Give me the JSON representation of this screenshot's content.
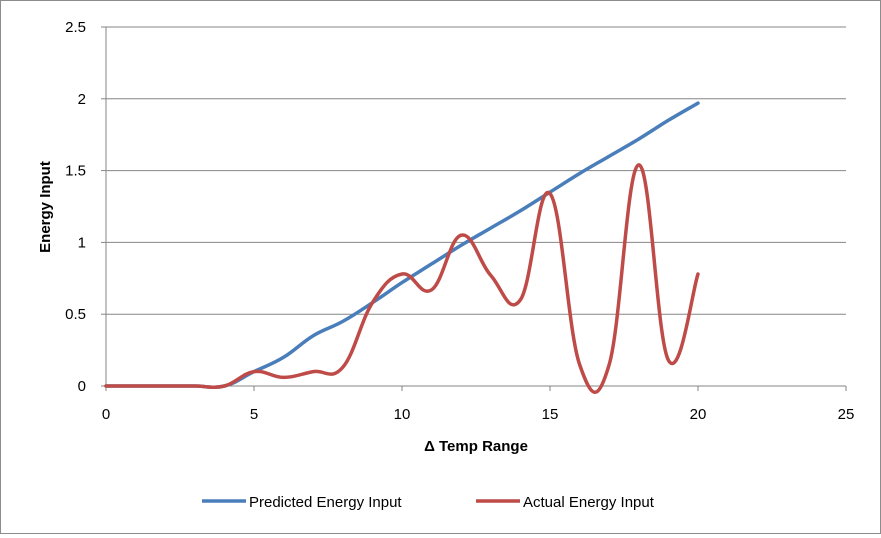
{
  "chart_data": {
    "type": "line",
    "title": "",
    "xlabel": "Δ Temp Range",
    "ylabel": "Energy Input",
    "xlim": [
      0,
      25
    ],
    "ylim": [
      0,
      2.5
    ],
    "x_ticks": [
      "0",
      "5",
      "10",
      "15",
      "20",
      "25"
    ],
    "y_ticks": [
      "0",
      "0.5",
      "1",
      "1.5",
      "2",
      "2.5"
    ],
    "grid": "horizontal",
    "legend_position": "bottom",
    "series": [
      {
        "name": "Predicted Energy Input",
        "color": "#4a7ebb",
        "x": [
          0,
          1,
          2,
          3,
          4,
          5,
          6,
          7,
          8,
          9,
          10,
          11,
          12,
          13,
          14,
          15,
          16,
          17,
          18,
          19,
          20
        ],
        "y": [
          0,
          0,
          0,
          0,
          0,
          0.1,
          0.2,
          0.35,
          0.45,
          0.58,
          0.72,
          0.85,
          0.98,
          1.1,
          1.22,
          1.35,
          1.48,
          1.6,
          1.72,
          1.85,
          1.97
        ]
      },
      {
        "name": "Actual Energy Input",
        "color": "#be4b48",
        "x": [
          0,
          1,
          2,
          3,
          4,
          5,
          6,
          7,
          8,
          9,
          10,
          11,
          12,
          13,
          14,
          15,
          16,
          17,
          18,
          19,
          20
        ],
        "y": [
          0,
          0,
          0,
          0,
          0,
          0.1,
          0.06,
          0.1,
          0.13,
          0.58,
          0.78,
          0.67,
          1.05,
          0.77,
          0.6,
          1.34,
          0.15,
          0.15,
          1.54,
          0.18,
          0.78
        ]
      }
    ]
  }
}
